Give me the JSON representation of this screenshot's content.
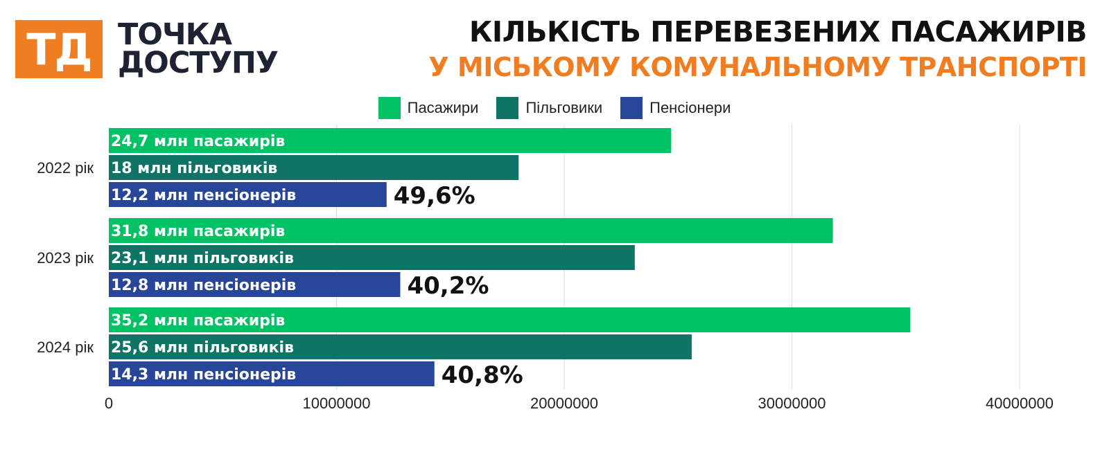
{
  "logo": {
    "badge": "ТД",
    "line1": "ТОЧКА",
    "line2": "ДОСТУПУ"
  },
  "header": {
    "title_line1": "КІЛЬКІСТЬ ПЕРЕВЕЗЕНИХ ПАСАЖИРІВ",
    "title_line2": "У МІСЬКОМУ КОМУНАЛЬНОМУ ТРАНСПОРТІ"
  },
  "colors": {
    "brand_orange": "#f07d22",
    "passengers": "#00c264",
    "beneficiaries": "#0e7566",
    "pensioners": "#27469a"
  },
  "chart_data": {
    "type": "bar",
    "orientation": "horizontal",
    "title": "КІЛЬКІСТЬ ПЕРЕВЕЗЕНИХ ПАСАЖИРІВ",
    "subtitle": "У МІСЬКОМУ КОМУНАЛЬНОМУ ТРАНСПОРТІ",
    "categories": [
      "2022 рік",
      "2023 рік",
      "2024 рік"
    ],
    "series": [
      {
        "name": "Пасажири",
        "color": "#00c264",
        "values": [
          24700000,
          31800000,
          35200000
        ],
        "labels": [
          "24,7 млн пасажирів",
          "31,8 млн пасажирів",
          "35,2 млн пасажирів"
        ]
      },
      {
        "name": "Пільговики",
        "color": "#0e7566",
        "values": [
          18000000,
          23100000,
          25600000
        ],
        "labels": [
          "18 млн пільговиків",
          "23,1 млн пільговиків",
          "25,6 млн пільговиків"
        ]
      },
      {
        "name": "Пенсіонери",
        "color": "#27469a",
        "values": [
          12200000,
          12800000,
          14300000
        ],
        "labels": [
          "12,2 млн пенсіонерів",
          "12,8 млн пенсіонерів",
          "14,3 млн пенсіонерів"
        ]
      }
    ],
    "annotations": [
      "49,6%",
      "40,2%",
      "40,8%"
    ],
    "xlim": [
      0,
      40000000
    ],
    "x_ticks": [
      0,
      10000000,
      20000000,
      30000000,
      40000000
    ],
    "x_tick_labels": [
      "0",
      "10000000",
      "20000000",
      "30000000",
      "40000000"
    ],
    "grid": "vertical",
    "legend_position": "top-center"
  }
}
